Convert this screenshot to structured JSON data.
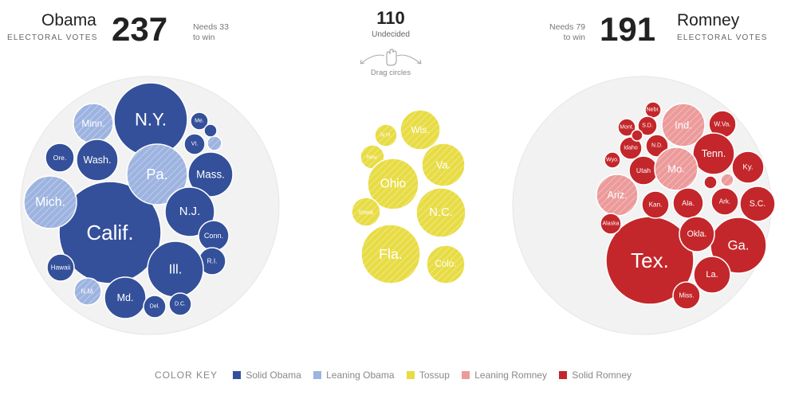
{
  "obama": {
    "name": "Obama",
    "subtitle": "ELECTORAL VOTES",
    "votes": "237",
    "needs_line1": "Needs 33",
    "needs_line2": "to win"
  },
  "romney": {
    "name": "Romney",
    "subtitle": "ELECTORAL VOTES",
    "votes": "191",
    "needs_line1": "Needs 79",
    "needs_line2": "to win"
  },
  "undecided": {
    "count": "110",
    "label": "Undecided",
    "hint": "Drag circles"
  },
  "colors": {
    "solid_obama": "#34509a",
    "leaning_obama": "#9db3e0",
    "tossup": "#e8dc45",
    "leaning_romney": "#ec9a9a",
    "solid_romney": "#c3272b",
    "pool": "#f2f2f2"
  },
  "legend": {
    "key_label": "COLOR KEY",
    "items": [
      {
        "label": "Solid Obama",
        "category": "solid_obama"
      },
      {
        "label": "Leaning Obama",
        "category": "leaning_obama"
      },
      {
        "label": "Tossup",
        "category": "tossup"
      },
      {
        "label": "Leaning Romney",
        "category": "leaning_romney"
      },
      {
        "label": "Solid Romney",
        "category": "solid_romney"
      }
    ]
  },
  "states": {
    "obama": [
      {
        "label": "Calif.",
        "category": "solid_obama"
      },
      {
        "label": "N.Y.",
        "category": "solid_obama"
      },
      {
        "label": "Pa.",
        "category": "leaning_obama"
      },
      {
        "label": "Minn.",
        "category": "leaning_obama"
      },
      {
        "label": "Mich.",
        "category": "leaning_obama"
      },
      {
        "label": "Ore.",
        "category": "solid_obama"
      },
      {
        "label": "Wash.",
        "category": "solid_obama"
      },
      {
        "label": "Mass.",
        "category": "solid_obama"
      },
      {
        "label": "N.J.",
        "category": "solid_obama"
      },
      {
        "label": "Conn.",
        "category": "solid_obama"
      },
      {
        "label": "R.I.",
        "category": "solid_obama"
      },
      {
        "label": "Ill.",
        "category": "solid_obama"
      },
      {
        "label": "Md.",
        "category": "solid_obama"
      },
      {
        "label": "Del.",
        "category": "solid_obama"
      },
      {
        "label": "D.C.",
        "category": "solid_obama"
      },
      {
        "label": "N.M.",
        "category": "leaning_obama"
      },
      {
        "label": "Hawaii",
        "category": "solid_obama"
      },
      {
        "label": "Me.",
        "category": "solid_obama"
      },
      {
        "label": "Vt.",
        "category": "solid_obama"
      },
      {
        "label": "",
        "category": "leaning_obama"
      },
      {
        "label": "",
        "category": "solid_obama"
      }
    ],
    "tossup": [
      {
        "label": "Wis.",
        "category": "tossup"
      },
      {
        "label": "N.H.",
        "category": "tossup"
      },
      {
        "label": "Nev.",
        "category": "tossup"
      },
      {
        "label": "Ohio",
        "category": "tossup"
      },
      {
        "label": "Va.",
        "category": "tossup"
      },
      {
        "label": "Iowa",
        "category": "tossup"
      },
      {
        "label": "N.C.",
        "category": "tossup"
      },
      {
        "label": "Fla.",
        "category": "tossup"
      },
      {
        "label": "Colo.",
        "category": "tossup"
      }
    ],
    "romney": [
      {
        "label": "Tex.",
        "category": "solid_romney"
      },
      {
        "label": "Ga.",
        "category": "solid_romney"
      },
      {
        "label": "Ind.",
        "category": "leaning_romney"
      },
      {
        "label": "Nebr.",
        "category": "solid_romney"
      },
      {
        "label": "Mont.",
        "category": "solid_romney"
      },
      {
        "label": "S.D.",
        "category": "solid_romney"
      },
      {
        "label": "W.Va.",
        "category": "solid_romney"
      },
      {
        "label": "Idaho",
        "category": "solid_romney"
      },
      {
        "label": "N.D.",
        "category": "solid_romney"
      },
      {
        "label": "Tenn.",
        "category": "solid_romney"
      },
      {
        "label": "Wyo.",
        "category": "solid_romney"
      },
      {
        "label": "Utah",
        "category": "solid_romney"
      },
      {
        "label": "Mo.",
        "category": "leaning_romney"
      },
      {
        "label": "Ky.",
        "category": "solid_romney"
      },
      {
        "label": "Ariz.",
        "category": "leaning_romney"
      },
      {
        "label": "Kan.",
        "category": "solid_romney"
      },
      {
        "label": "Ala.",
        "category": "solid_romney"
      },
      {
        "label": "Ark.",
        "category": "solid_romney"
      },
      {
        "label": "S.C.",
        "category": "solid_romney"
      },
      {
        "label": "Alaska",
        "category": "solid_romney"
      },
      {
        "label": "Okla.",
        "category": "solid_romney"
      },
      {
        "label": "La.",
        "category": "solid_romney"
      },
      {
        "label": "Miss.",
        "category": "solid_romney"
      },
      {
        "label": "",
        "category": "solid_romney"
      },
      {
        "label": "",
        "category": "leaning_romney"
      },
      {
        "label": "",
        "category": "solid_romney"
      }
    ]
  }
}
